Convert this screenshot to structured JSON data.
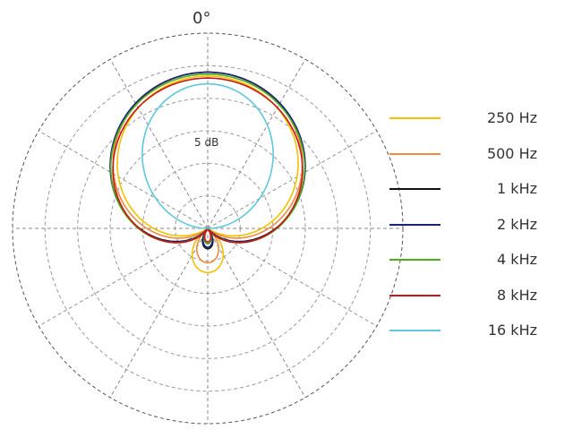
{
  "chart_data": {
    "type": "polar-line",
    "angle_label": "0°",
    "ring_label": "5 dB",
    "rings": 6,
    "radial_lines_deg": [
      0,
      30,
      60,
      90,
      120,
      150,
      180,
      210,
      240,
      270,
      300,
      330
    ],
    "grid": true,
    "legend_position": "right",
    "series": [
      {
        "name": "250 Hz",
        "color": "#f2c200",
        "pattern": "cardioid",
        "outer": 0.78,
        "rear": 0.29
      },
      {
        "name": "500 Hz",
        "color": "#f08a3c",
        "pattern": "cardioid",
        "outer": 0.8,
        "rear": 0.22
      },
      {
        "name": "1 kHz",
        "color": "#111111",
        "pattern": "supercardioid",
        "outer": 0.8,
        "rear": 0.13
      },
      {
        "name": "2 kHz",
        "color": "#1a237e",
        "pattern": "supercardioid",
        "outer": 0.8,
        "rear": 0.12
      },
      {
        "name": "4 kHz",
        "color": "#4caf1a",
        "pattern": "supercardioid",
        "outer": 0.79,
        "rear": 0.1
      },
      {
        "name": "8 kHz",
        "color": "#cc1515",
        "pattern": "supercardioid",
        "outer": 0.77,
        "rear": 0.09
      },
      {
        "name": "16 kHz",
        "color": "#5ec8dc",
        "pattern": "narrow",
        "outer": 0.74,
        "rear": 0.0
      }
    ]
  }
}
